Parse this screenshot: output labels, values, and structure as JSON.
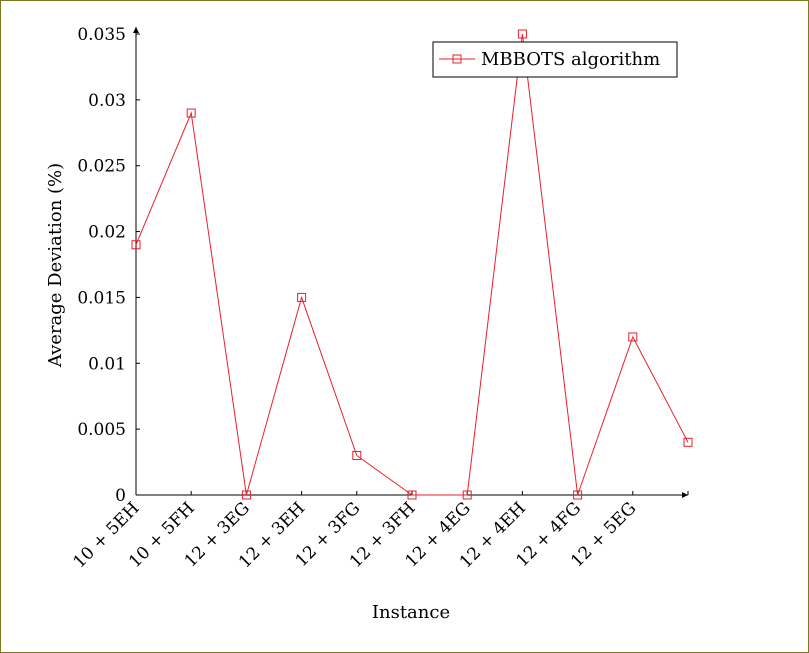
{
  "chart_data": {
    "type": "line",
    "xlabel": "Instance",
    "ylabel": "Average Deviation (%)",
    "categories": [
      "10 + 5EH",
      "10 + 5FH",
      "12 + 3EG",
      "12 + 3EH",
      "12 + 3FG",
      "12 + 3FH",
      "12 + 4EG",
      "12 + 4EH",
      "12 + 4FG",
      "12 + 5EG",
      ""
    ],
    "tick_labels": [
      "10 + 5EH",
      "10 + 5FH",
      "12 + 3EG",
      "12 + 3EH",
      "12 + 3FG",
      "12 + 3FH",
      "12 + 4EG",
      "12 + 4EH",
      "12 + 4FG",
      "12 + 5EG"
    ],
    "series": [
      {
        "name": "MBBOTS algorithm",
        "color": "#e8202a",
        "marker": "square",
        "values": [
          0.019,
          0.029,
          0,
          0.015,
          0.003,
          0,
          0,
          0.035,
          0,
          0.012,
          0.004
        ]
      }
    ],
    "yticks": [
      0,
      0.005,
      0.01,
      0.015,
      0.02,
      0.025,
      0.03,
      0.035
    ],
    "ytick_labels": [
      "0",
      "0.005",
      "0.01",
      "0.015",
      "0.02",
      "0.025",
      "0.03",
      "0.035"
    ],
    "ylim": [
      0,
      0.035
    ],
    "grid": false,
    "legend": "top-right"
  }
}
